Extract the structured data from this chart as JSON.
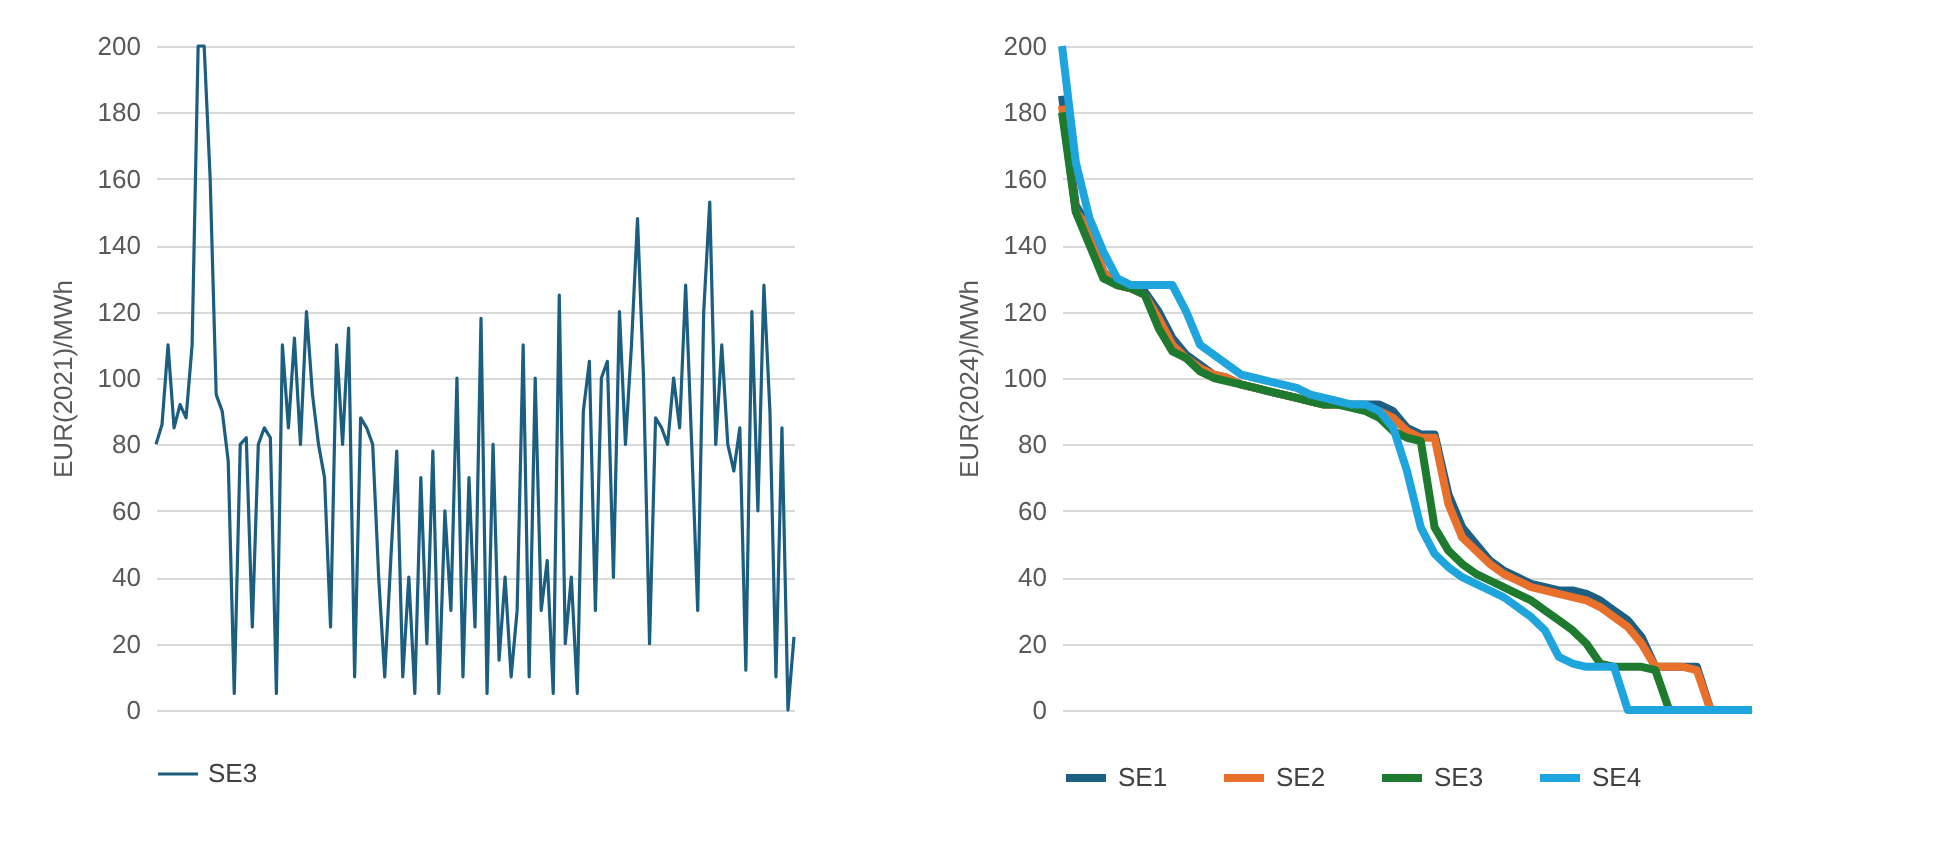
{
  "chart_data": [
    {
      "type": "line",
      "ylabel": "EUR(2021)/MWh",
      "ylim": [
        0,
        200
      ],
      "yticks": [
        0,
        20,
        40,
        60,
        80,
        100,
        120,
        140,
        160,
        180,
        200
      ],
      "grid": "y",
      "legend": "bottom",
      "tick_labels": "y",
      "categories": [
        null,
        null,
        null,
        null,
        null,
        null,
        null,
        null,
        null,
        null,
        null,
        null,
        null,
        null,
        null,
        null,
        null,
        null,
        null,
        null,
        null,
        null,
        null,
        null,
        null,
        null,
        null,
        null,
        null,
        null,
        null,
        null,
        null,
        null,
        null,
        null,
        null,
        null,
        null,
        null,
        null,
        null,
        null,
        null,
        null,
        null,
        null,
        null,
        null,
        null,
        null,
        null,
        null,
        null,
        null,
        null,
        null,
        null,
        null,
        null,
        null,
        null,
        null,
        null,
        null,
        null,
        null,
        null,
        null,
        null,
        null,
        null,
        null,
        null,
        null,
        null,
        null,
        null,
        null,
        null,
        null,
        null,
        null,
        null,
        null,
        null,
        null,
        null,
        null,
        null,
        null,
        null,
        null,
        null,
        null,
        null,
        null,
        null,
        null,
        null,
        null,
        null,
        null,
        null,
        null,
        null,
        null
      ],
      "series": [
        {
          "name": "SE3",
          "color": "#1b5e80",
          "values": [
            80,
            86,
            110,
            85,
            92,
            88,
            110,
            200,
            200,
            160,
            95,
            90,
            75,
            5,
            80,
            82,
            25,
            80,
            85,
            82,
            5,
            110,
            85,
            112,
            80,
            120,
            95,
            80,
            70,
            25,
            110,
            80,
            115,
            10,
            88,
            85,
            80,
            40,
            10,
            45,
            78,
            10,
            40,
            5,
            70,
            20,
            78,
            5,
            60,
            30,
            100,
            10,
            70,
            25,
            118,
            5,
            80,
            15,
            40,
            10,
            30,
            110,
            10,
            100,
            30,
            45,
            5,
            125,
            20,
            40,
            5,
            90,
            105,
            30,
            100,
            105,
            40,
            120,
            80,
            110,
            148,
            100,
            20,
            88,
            85,
            80,
            100,
            85,
            128,
            80,
            30,
            120,
            153,
            80,
            110,
            80,
            72,
            85,
            12,
            120,
            60,
            128,
            90,
            10,
            85,
            0,
            22
          ]
        }
      ]
    },
    {
      "type": "line",
      "ylabel": "EUR(2024)/MWh",
      "ylim": [
        0,
        200
      ],
      "yticks": [
        0,
        20,
        40,
        60,
        80,
        100,
        120,
        140,
        160,
        180,
        200
      ],
      "grid": "y",
      "legend": "bottom",
      "tick_labels": "y",
      "categories": [
        null,
        null,
        null,
        null,
        null,
        null,
        null,
        null,
        null,
        null,
        null,
        null,
        null,
        null,
        null,
        null,
        null,
        null,
        null,
        null,
        null,
        null,
        null,
        null,
        null,
        null,
        null,
        null,
        null,
        null,
        null,
        null,
        null,
        null,
        null,
        null,
        null,
        null,
        null,
        null,
        null,
        null,
        null,
        null,
        null,
        null,
        null,
        null,
        null,
        null,
        null
      ],
      "series": [
        {
          "name": "SE1",
          "color": "#1d5f82",
          "values": [
            185,
            152,
            145,
            132,
            128,
            127,
            126,
            120,
            112,
            107,
            104,
            101,
            100,
            98,
            97,
            96,
            95,
            94,
            93,
            92,
            92,
            92,
            92,
            92,
            90,
            85,
            83,
            83,
            65,
            55,
            50,
            45,
            42,
            40,
            38,
            37,
            36,
            36,
            35,
            33,
            30,
            27,
            22,
            13,
            13,
            13,
            13,
            0,
            0,
            null,
            null
          ]
        },
        {
          "name": "SE2",
          "color": "#e8702a",
          "values": [
            182,
            150,
            145,
            132,
            128,
            127,
            125,
            118,
            110,
            106,
            103,
            101,
            100,
            98,
            97,
            96,
            95,
            94,
            93,
            92,
            92,
            92,
            91,
            90,
            88,
            84,
            82,
            82,
            62,
            52,
            48,
            44,
            41,
            39,
            37,
            36,
            35,
            34,
            33,
            31,
            28,
            25,
            20,
            13,
            13,
            13,
            12,
            0,
            0,
            null,
            null
          ]
        },
        {
          "name": "SE3",
          "color": "#1e7a2e",
          "values": [
            180,
            150,
            140,
            130,
            128,
            127,
            125,
            115,
            108,
            106,
            102,
            100,
            99,
            98,
            97,
            96,
            95,
            94,
            93,
            92,
            92,
            91,
            90,
            88,
            84,
            82,
            81,
            55,
            48,
            44,
            41,
            39,
            37,
            35,
            33,
            30,
            27,
            24,
            20,
            14,
            13,
            13,
            13,
            12,
            0,
            0,
            0,
            null,
            null,
            null,
            null
          ]
        },
        {
          "name": "SE4",
          "color": "#1fa5dd",
          "values": [
            200,
            165,
            148,
            138,
            130,
            128,
            128,
            128,
            128,
            120,
            110,
            107,
            104,
            101,
            100,
            99,
            98,
            97,
            95,
            94,
            93,
            92,
            92,
            90,
            85,
            72,
            55,
            47,
            43,
            40,
            38,
            36,
            34,
            31,
            28,
            24,
            16,
            14,
            13,
            13,
            13,
            0,
            0,
            0,
            0,
            0,
            0,
            0,
            0,
            0,
            0
          ]
        }
      ]
    }
  ]
}
